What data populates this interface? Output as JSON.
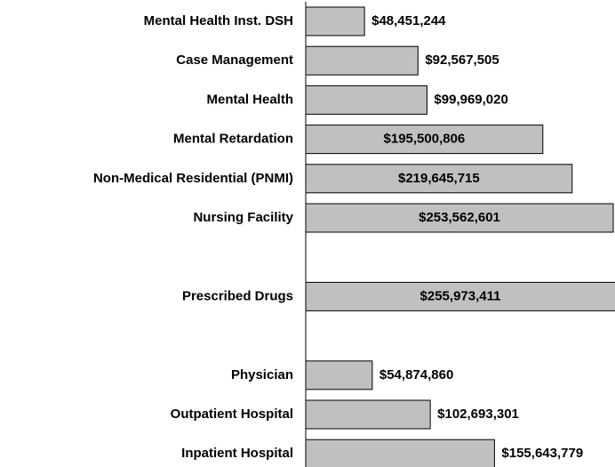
{
  "chart_data": {
    "type": "barh",
    "categories": [
      "Mental Health Inst. DSH",
      "Case Management",
      "Mental Health",
      "Mental Retardation",
      "Non-Medical Residential (PNMI)",
      "Nursing Facility",
      null,
      "Prescribed Drugs",
      null,
      "Physician",
      "Outpatient Hospital",
      "Inpatient Hospital"
    ],
    "values": [
      48451244,
      92567505,
      99969020,
      195500806,
      219645715,
      253562601,
      null,
      255973411,
      null,
      54874860,
      102693301,
      155643779
    ],
    "value_labels": [
      "$48,451,244",
      "$92,567,505",
      "$99,969,020",
      "$195,500,806",
      "$219,645,715",
      "$253,562,601",
      null,
      "$255,973,411",
      null,
      "$54,874,860",
      "$102,693,301",
      "$155,643,779"
    ],
    "color": "#c0c0c0",
    "xlim": [
      0,
      255000000
    ]
  }
}
